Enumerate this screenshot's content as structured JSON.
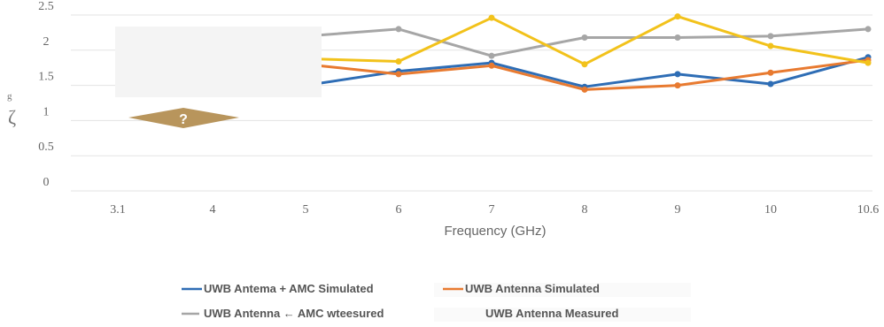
{
  "chart_data": {
    "type": "line",
    "xlabel": "Frequency (GHz)",
    "ylabel": "",
    "categories": [
      "3.1",
      "4",
      "5",
      "6",
      "7",
      "8",
      "9",
      "10",
      "10.6"
    ],
    "ylim": [
      0,
      2.5
    ],
    "yticks": [
      "0",
      "0.5",
      "1",
      "1.5",
      "2",
      "2.5"
    ],
    "grid": true,
    "legend_position": "bottom",
    "series": [
      {
        "name": "UWB Antema + AMC Simulated",
        "color": "#2E6DB5",
        "values": [
          null,
          null,
          1.5,
          1.7,
          1.82,
          1.48,
          1.66,
          1.52,
          1.9
        ]
      },
      {
        "name": "UWB Antenna Simulated",
        "color": "#E87A30",
        "values": [
          null,
          null,
          1.8,
          1.66,
          1.78,
          1.44,
          1.5,
          1.68,
          1.86
        ]
      },
      {
        "name": "UWB Antenna ← AMC wteesured",
        "color": "#A6A6A6",
        "values": [
          null,
          null,
          2.2,
          2.3,
          1.92,
          2.18,
          2.18,
          2.2,
          2.3
        ]
      },
      {
        "name": "UWB Antenna Measured",
        "color": "#F2C21B",
        "values": [
          null,
          null,
          1.88,
          1.84,
          2.46,
          1.8,
          2.48,
          2.06,
          1.82
        ]
      }
    ],
    "annotations": {
      "yaxis_glyph": "ζ",
      "yaxis_small": "g",
      "placeholder_symbol": "?"
    }
  }
}
